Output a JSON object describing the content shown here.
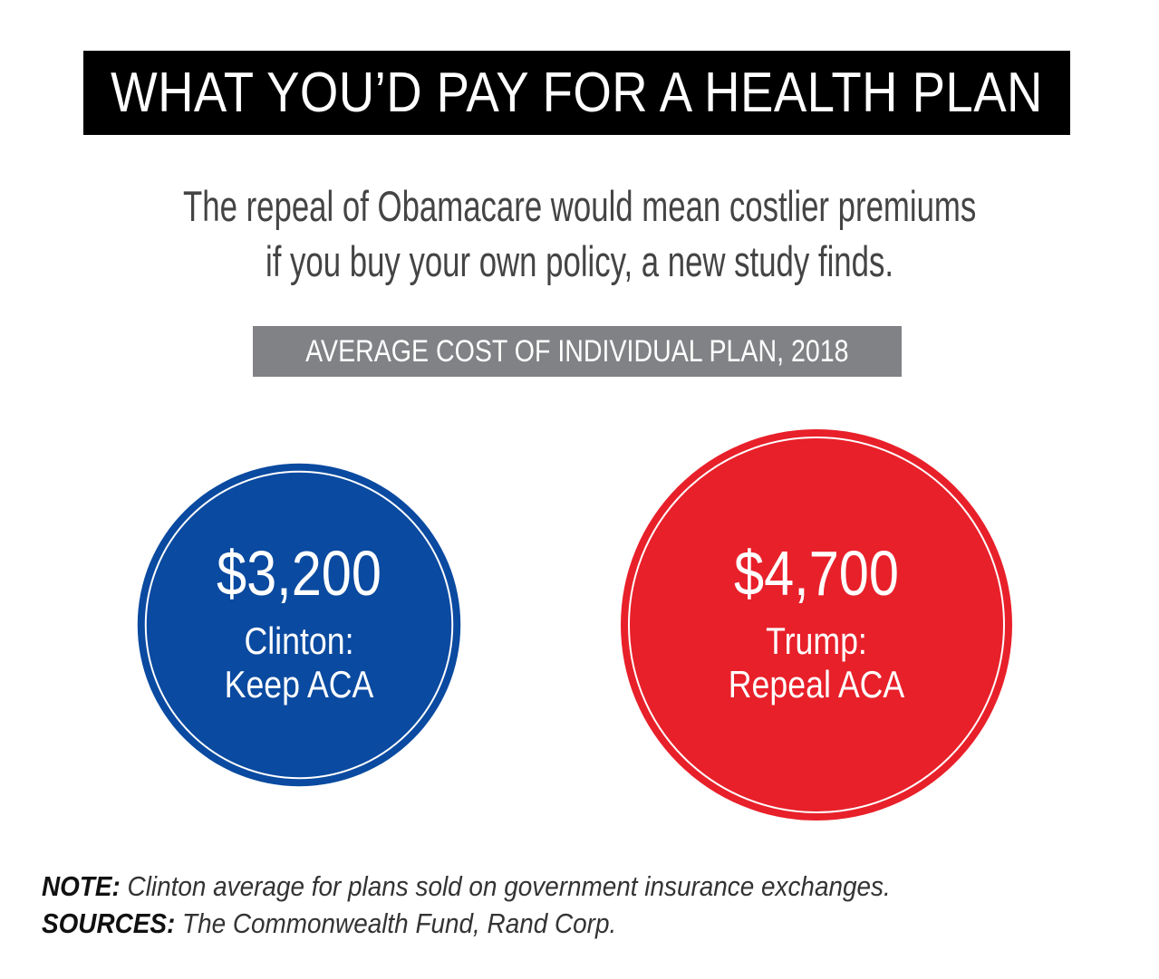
{
  "header": {
    "title": "WHAT YOU’D PAY FOR A HEALTH PLAN",
    "subtitle_line1": "The repeal of Obamacare would mean costlier premiums",
    "subtitle_line2": "if you buy your own policy, a new study finds."
  },
  "chart_data": {
    "type": "bubble",
    "title": "AVERAGE COST OF INDIVIDUAL PLAN, 2018",
    "unit": "$",
    "series": [
      {
        "value_label": "$3,200",
        "value": 3200,
        "label_line1": "Clinton:",
        "label_line2": "Keep ACA",
        "color": "#0a4aa0"
      },
      {
        "value_label": "$4,700",
        "value": 4700,
        "label_line1": "Trump:",
        "label_line2": "Repeal ACA",
        "color": "#e8202a"
      }
    ]
  },
  "footnotes": {
    "note_label": "NOTE:",
    "note_text": "Clinton average for plans sold on government insurance exchanges.",
    "sources_label": "SOURCES:",
    "sources_text": "The Commonwealth Fund, Rand Corp."
  },
  "colors": {
    "title_bg": "#000000",
    "section_bg": "#808285",
    "clinton_blue": "#0a4aa0",
    "trump_red": "#e8202a"
  }
}
